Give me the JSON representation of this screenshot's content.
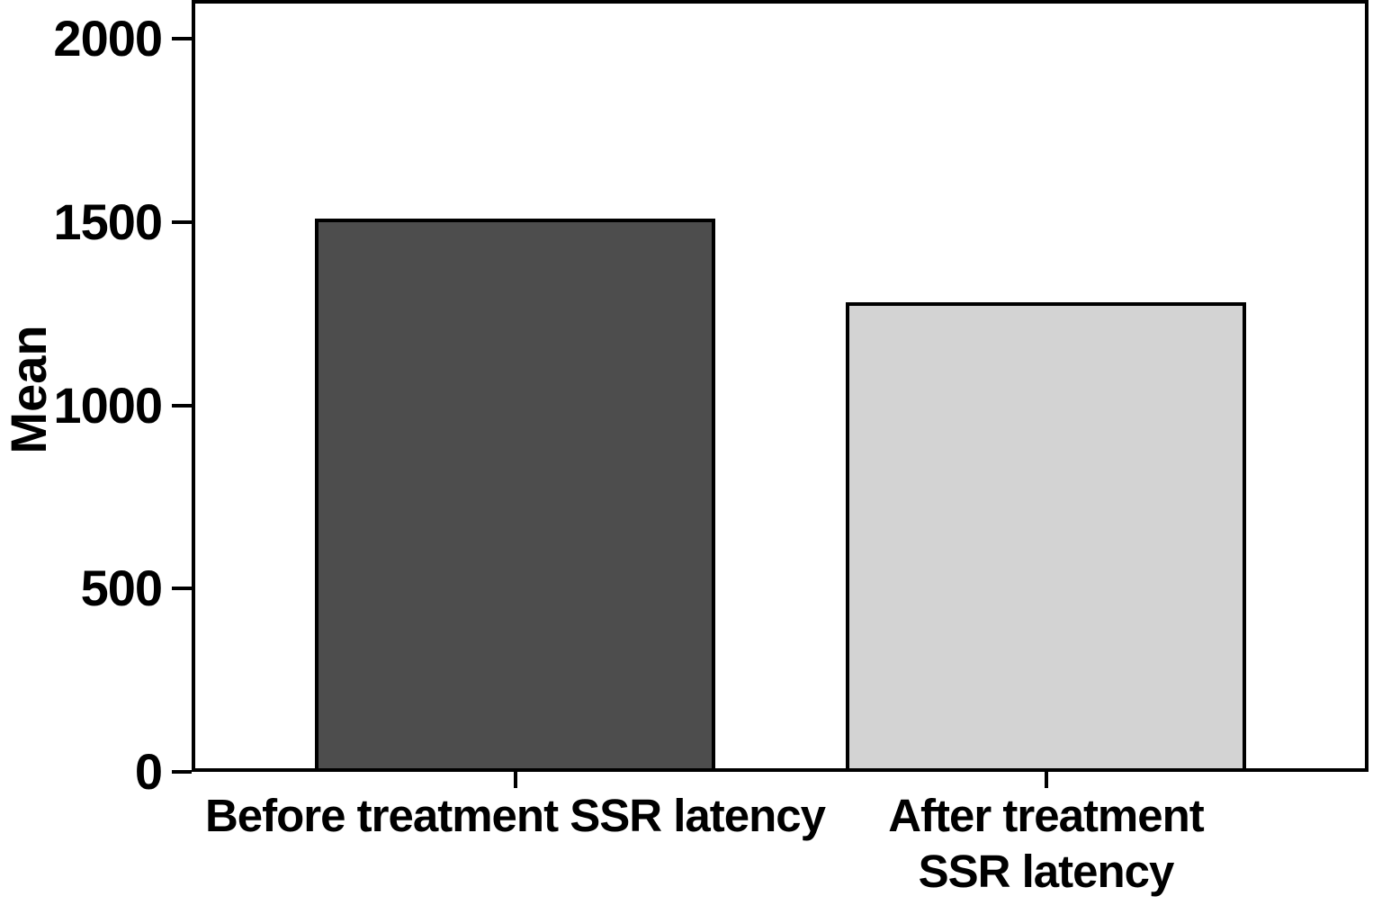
{
  "chart_data": {
    "type": "bar",
    "title": "",
    "xlabel": "",
    "ylabel": "Mean",
    "categories": [
      "Before treatment SSR latency",
      "After treatment SSR latency"
    ],
    "category_display_lines": [
      [
        "Before treatment SSR latency"
      ],
      [
        "After treatment",
        "SSR latency"
      ]
    ],
    "values": [
      1510,
      1280
    ],
    "ylim": [
      0,
      2000
    ],
    "yticks": [
      0,
      500,
      1000,
      1500,
      2000
    ],
    "grid": false,
    "legend": false,
    "frame": "full-box",
    "bar_colors": [
      "#4d4d4d",
      "#d3d3d3"
    ],
    "bar_border_color": "#000000",
    "axis_color": "#000000",
    "text_color": "#000000",
    "background_color": "#ffffff"
  }
}
